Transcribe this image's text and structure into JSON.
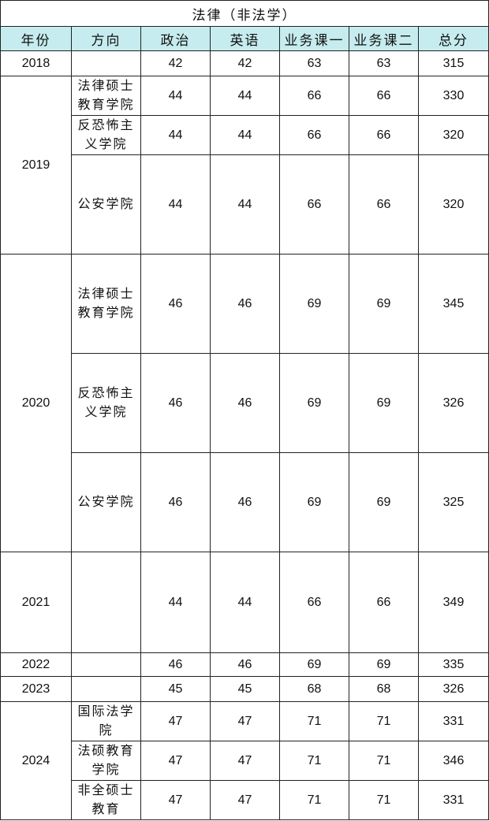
{
  "title": "法律（非法学）",
  "header_color": "#c6ecef",
  "columns": [
    "年份",
    "方向",
    "政治",
    "英语",
    "业务课一",
    "业务课二",
    "总分"
  ],
  "groups": [
    {
      "year": "2018",
      "rows": [
        {
          "dir": "",
          "vals": [
            "42",
            "42",
            "63",
            "63",
            "315"
          ],
          "h": 32
        }
      ]
    },
    {
      "year": "2019",
      "rows": [
        {
          "dir": "法律硕士教育学院",
          "vals": [
            "44",
            "44",
            "66",
            "66",
            "330"
          ],
          "h": 50
        },
        {
          "dir": "反恐怖主义学院",
          "vals": [
            "44",
            "44",
            "66",
            "66",
            "320"
          ],
          "h": 50
        },
        {
          "dir": "公安学院",
          "vals": [
            "44",
            "44",
            "66",
            "66",
            "320"
          ],
          "h": 126
        }
      ]
    },
    {
      "year": "2020",
      "rows": [
        {
          "dir": "法律硕士教育学院",
          "vals": [
            "46",
            "46",
            "69",
            "69",
            "345"
          ],
          "h": 126
        },
        {
          "dir": "反恐怖主义学院",
          "vals": [
            "46",
            "46",
            "69",
            "69",
            "326"
          ],
          "h": 126
        },
        {
          "dir": "公安学院",
          "vals": [
            "46",
            "46",
            "69",
            "69",
            "325"
          ],
          "h": 126
        }
      ]
    },
    {
      "year": "2021",
      "rows": [
        {
          "dir": "",
          "vals": [
            "44",
            "44",
            "66",
            "66",
            "349"
          ],
          "h": 128
        }
      ]
    },
    {
      "year": "2022",
      "rows": [
        {
          "dir": "",
          "vals": [
            "46",
            "46",
            "69",
            "69",
            "335"
          ],
          "h": 30
        }
      ]
    },
    {
      "year": "2023",
      "rows": [
        {
          "dir": "",
          "vals": [
            "45",
            "45",
            "68",
            "68",
            "326"
          ],
          "h": 32
        }
      ]
    },
    {
      "year": "2024",
      "rows": [
        {
          "dir": "国际法学院",
          "vals": [
            "47",
            "47",
            "71",
            "71",
            "331"
          ],
          "h": 50
        },
        {
          "dir": "法硕教育学院",
          "vals": [
            "47",
            "47",
            "71",
            "71",
            "346"
          ],
          "h": 50
        },
        {
          "dir": "非全硕士教育",
          "vals": [
            "47",
            "47",
            "71",
            "71",
            "331"
          ],
          "h": 50
        }
      ]
    }
  ]
}
